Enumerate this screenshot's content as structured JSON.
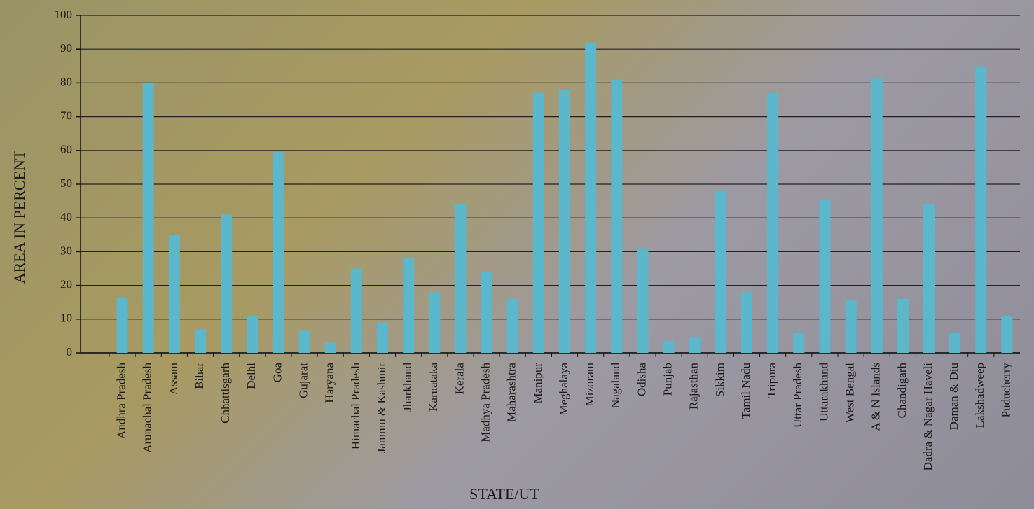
{
  "chart_data": {
    "type": "bar",
    "x_label": "STATE/UT",
    "y_label": "AREA IN PERCENT",
    "categories": [
      "Andhra Pradesh",
      "Arunachal Pradesh",
      "Assam",
      "Bihar",
      "Chhattisgarh",
      "Delhi",
      "Goa",
      "Gujarat",
      "Haryana",
      "Himachal Pradesh",
      "Jammu & Kashmir",
      "Jharkhand",
      "Karnataka",
      "Kerala",
      "Madhya Pradesh",
      "Maharashtra",
      "Manipur",
      "Meghalaya",
      "Mizoram",
      "Nagaland",
      "Odisha",
      "Punjab",
      "Rajasthan",
      "Sikkim",
      "Tamil Nadu",
      "Tripura",
      "Uttar Pradesh",
      "Uttarakhand",
      "West Bengal",
      "A & N Islands",
      "Chandigarh",
      "Dadra & Nagar Haveli",
      "Daman & Diu",
      "Lakshadweep",
      "Puducherry"
    ],
    "values": [
      16.5,
      80,
      35,
      7,
      41,
      11,
      59.5,
      6.5,
      3,
      25,
      9,
      28,
      18,
      44,
      24,
      16,
      77,
      78,
      92,
      81,
      31,
      3.5,
      4.5,
      48,
      18,
      77,
      6,
      45.5,
      15.5,
      81.5,
      16,
      44,
      6,
      85,
      11
    ],
    "color": "#5bb7cc",
    "ylim": [
      0,
      100
    ],
    "yticks": [
      0,
      10,
      20,
      30,
      40,
      50,
      60,
      70,
      80,
      90,
      100
    ],
    "grid": true
  }
}
